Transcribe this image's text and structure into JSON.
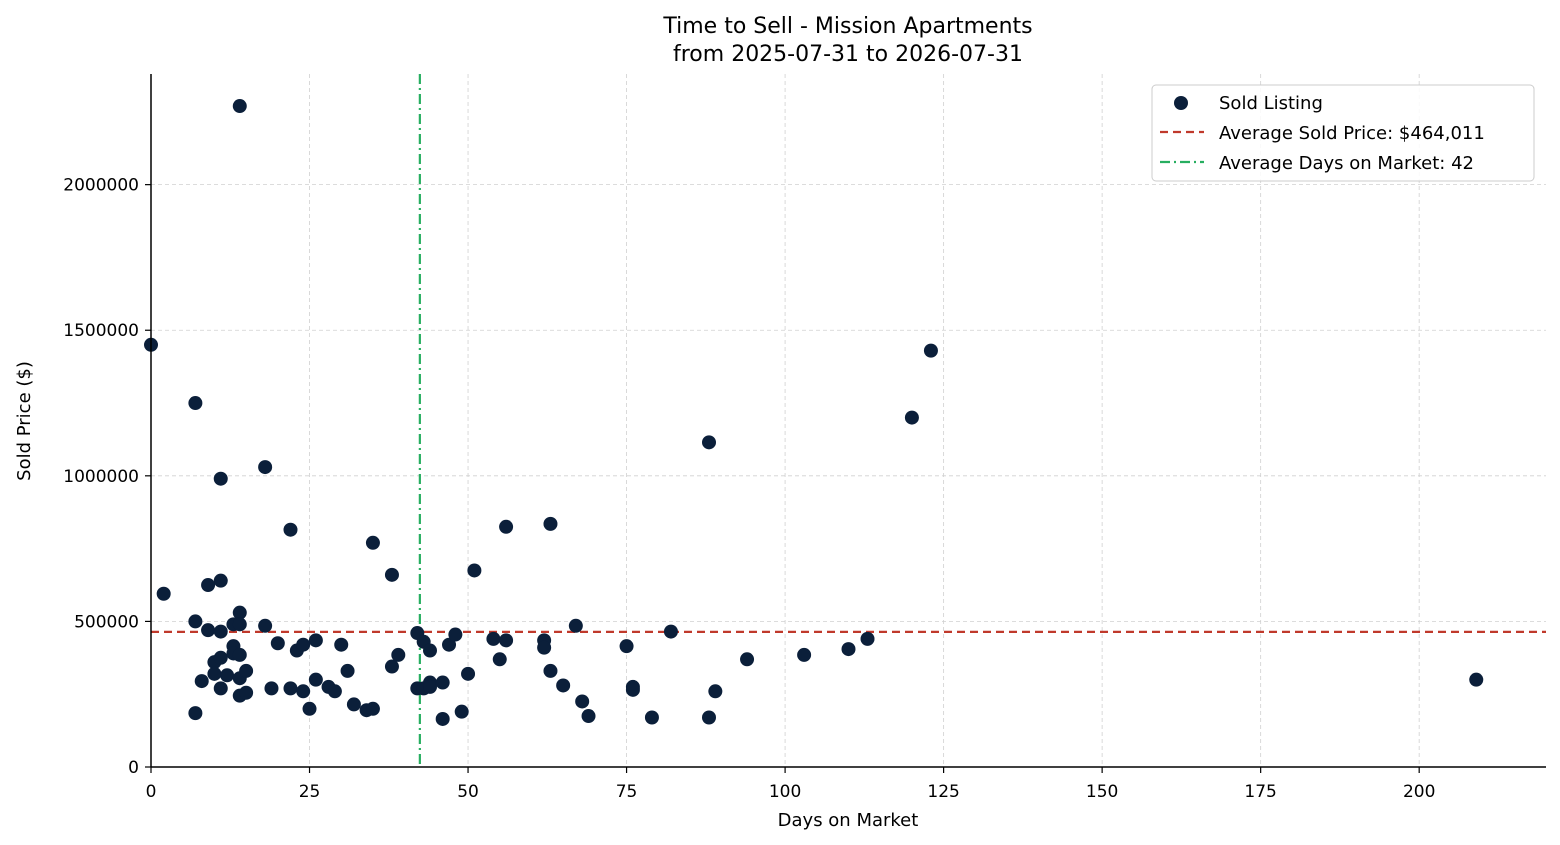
{
  "chart_data": {
    "type": "scatter",
    "title": "Time to Sell - Mission Apartments",
    "subtitle": "from 2025-07-31 to 2026-07-31",
    "xlabel": "Days on Market",
    "ylabel": "Sold Price ($)",
    "xlim": [
      0,
      220
    ],
    "ylim": [
      0,
      2380000
    ],
    "xticks": [
      0,
      25,
      50,
      75,
      100,
      125,
      150,
      175,
      200
    ],
    "yticks": [
      0,
      500000,
      1000000,
      1500000,
      2000000
    ],
    "xtick_labels": [
      "0",
      "25",
      "50",
      "75",
      "100",
      "125",
      "150",
      "175",
      "200"
    ],
    "ytick_labels": [
      "0",
      "500000",
      "1000000",
      "1500000",
      "2000000"
    ],
    "grid": true,
    "legend_position": "top-right",
    "colors": {
      "points": "#0b1f3a",
      "avg_price_line": "#c0392b",
      "avg_days_line": "#27ae60"
    },
    "series": [
      {
        "name": "Sold Listing",
        "points": [
          [
            0,
            1450000
          ],
          [
            2,
            595000
          ],
          [
            7,
            1250000
          ],
          [
            7,
            500000
          ],
          [
            7,
            185000
          ],
          [
            8,
            295000
          ],
          [
            9,
            625000
          ],
          [
            9,
            470000
          ],
          [
            10,
            360000
          ],
          [
            10,
            320000
          ],
          [
            11,
            990000
          ],
          [
            11,
            640000
          ],
          [
            11,
            465000
          ],
          [
            11,
            375000
          ],
          [
            11,
            270000
          ],
          [
            12,
            315000
          ],
          [
            13,
            490000
          ],
          [
            13,
            415000
          ],
          [
            13,
            390000
          ],
          [
            14,
            2270000
          ],
          [
            14,
            530000
          ],
          [
            14,
            490000
          ],
          [
            14,
            385000
          ],
          [
            14,
            305000
          ],
          [
            14,
            245000
          ],
          [
            15,
            330000
          ],
          [
            15,
            255000
          ],
          [
            18,
            1030000
          ],
          [
            18,
            485000
          ],
          [
            19,
            270000
          ],
          [
            20,
            425000
          ],
          [
            22,
            815000
          ],
          [
            22,
            270000
          ],
          [
            23,
            400000
          ],
          [
            24,
            420000
          ],
          [
            24,
            260000
          ],
          [
            25,
            200000
          ],
          [
            26,
            435000
          ],
          [
            26,
            300000
          ],
          [
            28,
            275000
          ],
          [
            29,
            260000
          ],
          [
            30,
            420000
          ],
          [
            31,
            330000
          ],
          [
            32,
            215000
          ],
          [
            34,
            195000
          ],
          [
            35,
            770000
          ],
          [
            35,
            200000
          ],
          [
            38,
            660000
          ],
          [
            38,
            345000
          ],
          [
            39,
            385000
          ],
          [
            42,
            460000
          ],
          [
            42,
            270000
          ],
          [
            43,
            430000
          ],
          [
            43,
            270000
          ],
          [
            44,
            400000
          ],
          [
            44,
            290000
          ],
          [
            44,
            275000
          ],
          [
            46,
            290000
          ],
          [
            46,
            165000
          ],
          [
            47,
            420000
          ],
          [
            48,
            455000
          ],
          [
            49,
            190000
          ],
          [
            50,
            320000
          ],
          [
            51,
            675000
          ],
          [
            54,
            440000
          ],
          [
            55,
            370000
          ],
          [
            56,
            825000
          ],
          [
            56,
            435000
          ],
          [
            62,
            435000
          ],
          [
            62,
            410000
          ],
          [
            63,
            835000
          ],
          [
            63,
            330000
          ],
          [
            65,
            280000
          ],
          [
            67,
            485000
          ],
          [
            68,
            225000
          ],
          [
            69,
            175000
          ],
          [
            75,
            415000
          ],
          [
            76,
            275000
          ],
          [
            76,
            265000
          ],
          [
            79,
            170000
          ],
          [
            82,
            465000
          ],
          [
            88,
            1115000
          ],
          [
            88,
            170000
          ],
          [
            89,
            260000
          ],
          [
            94,
            370000
          ],
          [
            103,
            385000
          ],
          [
            110,
            405000
          ],
          [
            113,
            440000
          ],
          [
            120,
            1200000
          ],
          [
            123,
            1430000
          ],
          [
            209,
            300000
          ]
        ]
      }
    ],
    "reference_lines": [
      {
        "name": "Average Sold Price: $464,011",
        "orientation": "horizontal",
        "value": 464011,
        "style": "dashed"
      },
      {
        "name": "Average Days on Market: 42",
        "orientation": "vertical",
        "value": 42.4,
        "style": "dashdot"
      }
    ],
    "legend": [
      {
        "label": "Sold Listing",
        "kind": "marker"
      },
      {
        "label": "Average Sold Price: $464,011",
        "kind": "dashed-line"
      },
      {
        "label": "Average Days on Market: 42",
        "kind": "dashdot-line"
      }
    ]
  }
}
